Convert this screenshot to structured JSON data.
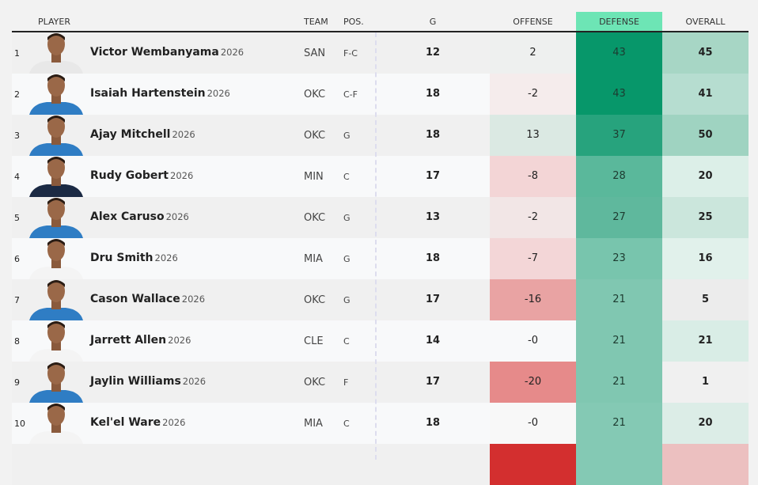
{
  "headers": {
    "player": "PLAYER",
    "team": "TEAM",
    "pos": "POS.",
    "g": "G",
    "offense": "OFFENSE",
    "defense": "DEFENSE",
    "overall": "OVERALL"
  },
  "rows": [
    {
      "rank": "1",
      "name": "Victor Wembanyama",
      "year": "2026",
      "team": "SAN",
      "pos": "F-C",
      "g": "12",
      "offense": "2",
      "defense": "43",
      "overall": "45",
      "off_color": "#eef0ef",
      "def_color": "#07976a",
      "ovr_color": "#a7d6c5",
      "jersey": "#e8e8e8"
    },
    {
      "rank": "2",
      "name": "Isaiah Hartenstein",
      "year": "2026",
      "team": "OKC",
      "pos": "C-F",
      "g": "18",
      "offense": "-2",
      "defense": "43",
      "overall": "41",
      "off_color": "#f5ecec",
      "def_color": "#07976a",
      "ovr_color": "#b6ddd0",
      "jersey": "#2f7dc4"
    },
    {
      "rank": "3",
      "name": "Ajay Mitchell",
      "year": "2026",
      "team": "OKC",
      "pos": "G",
      "g": "18",
      "offense": "13",
      "defense": "37",
      "overall": "50",
      "off_color": "#dbe9e3",
      "def_color": "#27a37d",
      "ovr_color": "#9fd3c1",
      "jersey": "#2f7dc4"
    },
    {
      "rank": "4",
      "name": "Rudy Gobert",
      "year": "2026",
      "team": "MIN",
      "pos": "C",
      "g": "17",
      "offense": "-8",
      "defense": "28",
      "overall": "20",
      "off_color": "#f3d5d6",
      "def_color": "#5ab89b",
      "ovr_color": "#dcefe8",
      "jersey": "#1b2a44"
    },
    {
      "rank": "5",
      "name": "Alex Caruso",
      "year": "2026",
      "team": "OKC",
      "pos": "G",
      "g": "13",
      "offense": "-2",
      "defense": "27",
      "overall": "25",
      "off_color": "#f2e6e6",
      "def_color": "#5fb89d",
      "ovr_color": "#cbe6dc",
      "jersey": "#2f7dc4"
    },
    {
      "rank": "6",
      "name": "Dru Smith",
      "year": "2026",
      "team": "MIA",
      "pos": "G",
      "g": "18",
      "offense": "-7",
      "defense": "23",
      "overall": "16",
      "off_color": "#f3d6d7",
      "def_color": "#78c5ad",
      "ovr_color": "#e1f1eb",
      "jersey": "#f4f4f4"
    },
    {
      "rank": "7",
      "name": "Cason Wallace",
      "year": "2026",
      "team": "OKC",
      "pos": "G",
      "g": "17",
      "offense": "-16",
      "defense": "21",
      "overall": "5",
      "off_color": "#e9a3a3",
      "def_color": "#80c7b1",
      "ovr_color": "#ececec",
      "jersey": "#2f7dc4"
    },
    {
      "rank": "8",
      "name": "Jarrett Allen",
      "year": "2026",
      "team": "CLE",
      "pos": "C",
      "g": "14",
      "offense": "-0",
      "defense": "21",
      "overall": "21",
      "off_color": "#f8f9fa",
      "def_color": "#80c7b1",
      "ovr_color": "#d9ede6",
      "jersey": "#f4f4f4"
    },
    {
      "rank": "9",
      "name": "Jaylin Williams",
      "year": "2026",
      "team": "OKC",
      "pos": "F",
      "g": "17",
      "offense": "-20",
      "defense": "21",
      "overall": "1",
      "off_color": "#e68a8a",
      "def_color": "#80c7b1",
      "ovr_color": "#f0f0f0",
      "jersey": "#2f7dc4"
    },
    {
      "rank": "10",
      "name": "Kel'el Ware",
      "year": "2026",
      "team": "MIA",
      "pos": "C",
      "g": "18",
      "offense": "-0",
      "defense": "21",
      "overall": "20",
      "off_color": "#f8f8f8",
      "def_color": "#84c9b4",
      "ovr_color": "#dcede7",
      "jersey": "#f4f4f4"
    }
  ],
  "partial_row": {
    "off_color": "#d32f2f",
    "def_color": "#84c9b4",
    "ovr_color": "#ecc0c0"
  }
}
